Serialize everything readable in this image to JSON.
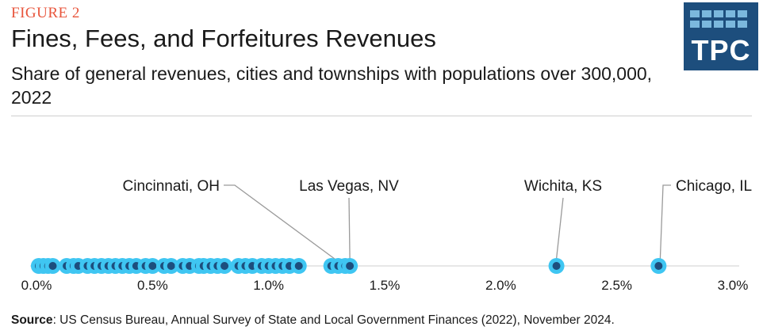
{
  "header": {
    "figure_label": "FIGURE 2",
    "title": "Fines, Fees, and Forfeitures Revenues",
    "subtitle": "Share of general revenues, cities and townships with populations over 300,000, 2022"
  },
  "logo": {
    "text": "TPC"
  },
  "source": {
    "label": "Source",
    "text": ": US Census Bureau, Annual Survey of State and Local Government Finances (2022), November 2024."
  },
  "colors": {
    "outer": "#3fc6f2",
    "inner": "#1d4e7d",
    "axis": "#cfcfcf",
    "figure_label": "#e8553c",
    "logo_bg": "#1d4e7d"
  },
  "chart_data": {
    "type": "scatter",
    "x_unit": "%",
    "xlim": [
      0,
      3.0
    ],
    "x_ticks": [
      0,
      0.5,
      1.0,
      1.5,
      2.0,
      2.5,
      3.0
    ],
    "x_tick_labels": [
      "0.0%",
      "0.5%",
      "1.0%",
      "1.5%",
      "2.0%",
      "2.5%",
      "3.0%"
    ],
    "grid": false,
    "values": [
      0.01,
      0.03,
      0.05,
      0.07,
      0.13,
      0.16,
      0.18,
      0.22,
      0.25,
      0.28,
      0.31,
      0.34,
      0.37,
      0.4,
      0.43,
      0.47,
      0.5,
      0.55,
      0.58,
      0.63,
      0.66,
      0.7,
      0.72,
      0.75,
      0.78,
      0.81,
      0.87,
      0.9,
      0.93,
      0.97,
      1.0,
      1.03,
      1.06,
      1.09,
      1.13,
      1.27,
      1.3,
      1.33,
      1.35,
      2.24,
      2.68
    ],
    "annotations": [
      {
        "label": "Cincinnati, OH",
        "value": 1.33
      },
      {
        "label": "Las Vegas, NV",
        "value": 1.35
      },
      {
        "label": "Wichita, KS",
        "value": 2.24
      },
      {
        "label": "Chicago, IL",
        "value": 2.68
      }
    ]
  }
}
